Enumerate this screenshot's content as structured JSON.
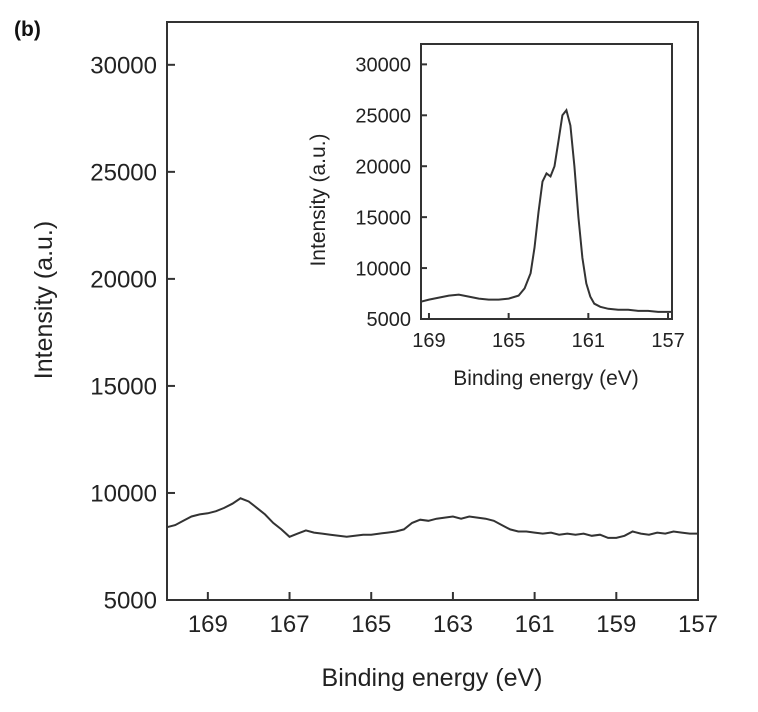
{
  "panel_label": "(b)",
  "chart_data": [
    {
      "type": "line",
      "name": "main",
      "xlabel": "Binding energy (eV)",
      "ylabel": "Intensity (a.u.)",
      "xlim": [
        170,
        157
      ],
      "ylim": [
        5000,
        32000
      ],
      "x_ticks": [
        169,
        167,
        165,
        163,
        161,
        159,
        157
      ],
      "y_ticks": [
        5000,
        10000,
        15000,
        20000,
        25000,
        30000
      ],
      "grid": false,
      "series": [
        {
          "x": [
            170,
            169.8,
            169.6,
            169.4,
            169.2,
            169.0,
            168.8,
            168.6,
            168.4,
            168.2,
            168.0,
            167.8,
            167.6,
            167.4,
            167.2,
            167.0,
            166.8,
            166.6,
            166.4,
            166.2,
            166.0,
            165.8,
            165.6,
            165.4,
            165.2,
            165.0,
            164.8,
            164.6,
            164.4,
            164.2,
            164.0,
            163.8,
            163.6,
            163.4,
            163.2,
            163.0,
            162.8,
            162.6,
            162.4,
            162.2,
            162.0,
            161.8,
            161.6,
            161.4,
            161.2,
            161.0,
            160.8,
            160.6,
            160.4,
            160.2,
            160.0,
            159.8,
            159.6,
            159.4,
            159.2,
            159.0,
            158.8,
            158.6,
            158.4,
            158.2,
            158.0,
            157.8,
            157.6,
            157.4,
            157.2,
            157.0
          ],
          "y": [
            8400,
            8500,
            8700,
            8900,
            9000,
            9050,
            9150,
            9300,
            9500,
            9750,
            9600,
            9300,
            9000,
            8600,
            8300,
            7950,
            8100,
            8250,
            8150,
            8100,
            8050,
            8000,
            7950,
            8000,
            8050,
            8050,
            8100,
            8150,
            8200,
            8300,
            8600,
            8750,
            8700,
            8800,
            8850,
            8900,
            8800,
            8900,
            8850,
            8800,
            8700,
            8500,
            8300,
            8200,
            8200,
            8150,
            8100,
            8150,
            8050,
            8100,
            8050,
            8100,
            8000,
            8050,
            7900,
            7900,
            8000,
            8200,
            8100,
            8050,
            8150,
            8100,
            8200,
            8150,
            8100,
            8100
          ]
        }
      ]
    },
    {
      "type": "line",
      "name": "inset",
      "xlabel": "Binding energy (eV)",
      "ylabel": "Intensity (a.u.)",
      "xlim": [
        169.4,
        156.8
      ],
      "ylim": [
        5000,
        32000
      ],
      "x_ticks": [
        169,
        165,
        161,
        157
      ],
      "y_ticks": [
        5000,
        10000,
        15000,
        20000,
        25000,
        30000
      ],
      "grid": false,
      "series": [
        {
          "x": [
            169.4,
            169.0,
            168.5,
            168.0,
            167.5,
            167.0,
            166.5,
            166.0,
            165.5,
            165.0,
            164.5,
            164.2,
            163.9,
            163.7,
            163.5,
            163.3,
            163.1,
            162.9,
            162.7,
            162.5,
            162.3,
            162.1,
            161.9,
            161.7,
            161.5,
            161.3,
            161.1,
            160.9,
            160.7,
            160.4,
            160.0,
            159.5,
            159.0,
            158.5,
            158.0,
            157.5,
            157.0,
            156.8
          ],
          "y": [
            6700,
            6900,
            7100,
            7300,
            7400,
            7200,
            7000,
            6900,
            6900,
            7000,
            7300,
            8000,
            9500,
            12000,
            15500,
            18500,
            19300,
            19000,
            20000,
            22500,
            25000,
            25500,
            24000,
            20000,
            15000,
            11000,
            8500,
            7200,
            6500,
            6200,
            6000,
            5900,
            5900,
            5800,
            5800,
            5700,
            5700,
            5700
          ]
        }
      ]
    }
  ]
}
